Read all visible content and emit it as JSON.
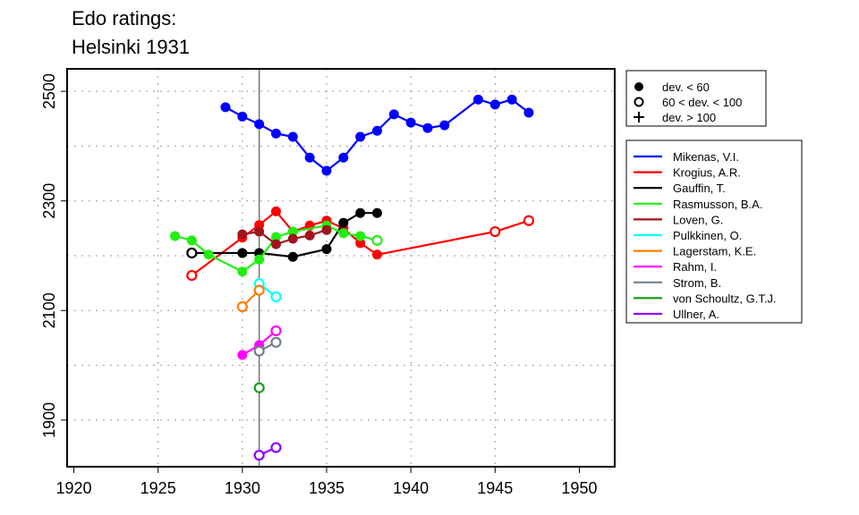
{
  "chart_data": {
    "type": "line",
    "title_lines": [
      "Edo ratings:",
      "Helsinki 1931"
    ],
    "xlabel": "",
    "ylabel": "",
    "xlim": [
      1919.6,
      1952.1
    ],
    "ylim": [
      1815,
      2541
    ],
    "xticks": [
      1920,
      1925,
      1930,
      1935,
      1940,
      1945,
      1950
    ],
    "yticks": [
      1900,
      2100,
      2300,
      2500
    ],
    "grid_y": [
      1900,
      2000,
      2100,
      2200,
      2300,
      2400,
      2500
    ],
    "grid_x": [
      1925,
      1930,
      1935,
      1940,
      1945
    ],
    "grid": "dotted",
    "reference_line_x": 1931,
    "marker_legend": {
      "placement": "top-right outside",
      "items": [
        {
          "symbol": "filled-circle",
          "label": "dev. < 60"
        },
        {
          "symbol": "open-circle",
          "label": "60 < dev. < 100"
        },
        {
          "symbol": "plus",
          "label": "dev. > 100"
        }
      ]
    },
    "series_legend_placement": "right outside",
    "series": [
      {
        "name": "Mikenas, V.I.",
        "color": "#0000ff",
        "points": [
          [
            1929,
            2471,
            "f"
          ],
          [
            1930,
            2454,
            "f"
          ],
          [
            1931,
            2440,
            "f"
          ],
          [
            1932,
            2423,
            "f"
          ],
          [
            1933,
            2417,
            "f"
          ],
          [
            1934,
            2379,
            "f"
          ],
          [
            1935,
            2355,
            "f"
          ],
          [
            1936,
            2379,
            "f"
          ],
          [
            1937,
            2417,
            "f"
          ],
          [
            1938,
            2428,
            "f"
          ],
          [
            1939,
            2458,
            "f"
          ],
          [
            1940,
            2443,
            "f"
          ],
          [
            1941,
            2433,
            "f"
          ],
          [
            1942,
            2438,
            "f"
          ],
          [
            1944,
            2485,
            "f"
          ],
          [
            1945,
            2476,
            "f"
          ],
          [
            1946,
            2485,
            "f"
          ],
          [
            1947,
            2461,
            "f"
          ]
        ]
      },
      {
        "name": "Krogius, A.R.",
        "color": "#ff0000",
        "points": [
          [
            1927,
            2164,
            "o"
          ],
          [
            1930,
            2233,
            "f"
          ],
          [
            1931,
            2256,
            "f"
          ],
          [
            1932,
            2281,
            "f"
          ],
          [
            1933,
            2244,
            "f"
          ],
          [
            1934,
            2255,
            "f"
          ],
          [
            1935,
            2264,
            "f"
          ],
          [
            1936,
            2250,
            "f"
          ],
          [
            1937,
            2223,
            "f"
          ],
          [
            1938,
            2202,
            "f"
          ],
          [
            1945,
            2244,
            "o"
          ],
          [
            1947,
            2264,
            "o"
          ]
        ]
      },
      {
        "name": "Gauffin, T.",
        "color": "#000000",
        "points": [
          [
            1927,
            2205,
            "o"
          ],
          [
            1930,
            2205,
            "f"
          ],
          [
            1931,
            2205,
            "f"
          ],
          [
            1933,
            2198,
            "f"
          ],
          [
            1935,
            2212,
            "f"
          ],
          [
            1936,
            2260,
            "f"
          ],
          [
            1937,
            2278,
            "f"
          ],
          [
            1938,
            2278,
            "f"
          ]
        ]
      },
      {
        "name": "Rasmusson, B.A.",
        "color": "#22ee11",
        "points": [
          [
            1926,
            2236,
            "f"
          ],
          [
            1927,
            2228,
            "f"
          ],
          [
            1928,
            2202,
            "f"
          ],
          [
            1930,
            2171,
            "f"
          ],
          [
            1931,
            2193,
            "f"
          ],
          [
            1932,
            2234,
            "f"
          ],
          [
            1933,
            2244,
            "f"
          ],
          [
            1935,
            2255,
            "f"
          ],
          [
            1936,
            2241,
            "f"
          ],
          [
            1937,
            2236,
            "f"
          ],
          [
            1938,
            2228,
            "o"
          ]
        ]
      },
      {
        "name": "Loven, G.",
        "color": "#a0141e",
        "points": [
          [
            1930,
            2239,
            "f"
          ],
          [
            1931,
            2244,
            "f"
          ],
          [
            1932,
            2221,
            "f"
          ],
          [
            1933,
            2231,
            "f"
          ],
          [
            1934,
            2237,
            "f"
          ],
          [
            1935,
            2247,
            "f"
          ]
        ]
      },
      {
        "name": "Pulkkinen, O.",
        "color": "#00ffff",
        "points": [
          [
            1931,
            2149,
            "o"
          ],
          [
            1932,
            2125,
            "o"
          ]
        ]
      },
      {
        "name": "Lagerstam, K.E.",
        "color": "#ff7f00",
        "points": [
          [
            1930,
            2107,
            "o"
          ],
          [
            1931,
            2137,
            "o"
          ]
        ]
      },
      {
        "name": "Rahm, I.",
        "color": "#ff00ff",
        "points": [
          [
            1930,
            2019,
            "f"
          ],
          [
            1931,
            2037,
            "f"
          ],
          [
            1932,
            2063,
            "o"
          ]
        ]
      },
      {
        "name": "Strom, B.",
        "color": "#708090",
        "points": [
          [
            1931,
            2026,
            "o"
          ],
          [
            1932,
            2042,
            "o"
          ]
        ]
      },
      {
        "name": "von Schoultz, G.T.J.",
        "color": "#1a9e1a",
        "points": [
          [
            1931,
            1959,
            "o"
          ]
        ]
      },
      {
        "name": "Ullner, A.",
        "color": "#8f00ff",
        "points": [
          [
            1931,
            1836,
            "o"
          ],
          [
            1932,
            1850,
            "o"
          ]
        ]
      }
    ]
  }
}
